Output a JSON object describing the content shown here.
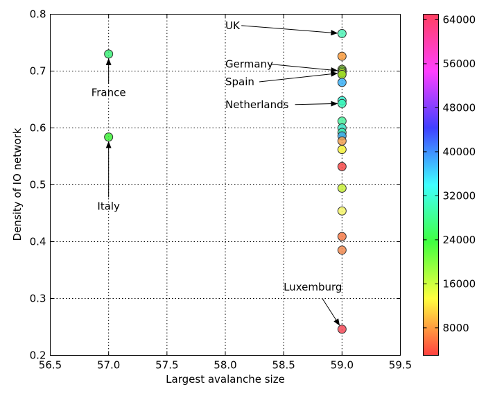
{
  "chart_data": {
    "type": "scatter",
    "title": "",
    "xlabel": "Largest avalanche size",
    "ylabel": "Density of IO network",
    "xlim": [
      56.5,
      59.5
    ],
    "ylim": [
      0.2,
      0.8
    ],
    "xticks": [
      56.5,
      57.0,
      57.5,
      58.0,
      58.5,
      59.0,
      59.5
    ],
    "xtick_labels": [
      "56.5",
      "57.0",
      "57.5",
      "58.0",
      "58.5",
      "59.0",
      "59.5"
    ],
    "yticks": [
      0.2,
      0.3,
      0.4,
      0.5,
      0.6,
      0.7,
      0.8
    ],
    "ytick_labels": [
      "0.2",
      "0.3",
      "0.4",
      "0.5",
      "0.6",
      "0.7",
      "0.8"
    ],
    "grid": true,
    "colorbar": {
      "colormap": "hsv",
      "range": [
        3000,
        65000
      ],
      "ticks": [
        8000,
        16000,
        24000,
        32000,
        40000,
        48000,
        56000,
        64000
      ],
      "tick_labels": [
        "8000",
        "16000",
        "24000",
        "32000",
        "40000",
        "48000",
        "56000",
        "64000"
      ]
    },
    "points": [
      {
        "x": 57.0,
        "y": 0.73,
        "color": "#3cf078"
      },
      {
        "x": 57.0,
        "y": 0.584,
        "color": "#3ff03a"
      },
      {
        "x": 59.0,
        "y": 0.766,
        "color": "#4ff2b6"
      },
      {
        "x": 59.0,
        "y": 0.726,
        "color": "#f89a3c"
      },
      {
        "x": 59.0,
        "y": 0.703,
        "color": "#86c43a"
      },
      {
        "x": 59.0,
        "y": 0.7,
        "color": "#6fcc2e"
      },
      {
        "x": 59.0,
        "y": 0.697,
        "color": "#b8e030"
      },
      {
        "x": 59.0,
        "y": 0.694,
        "color": "#9ad826"
      },
      {
        "x": 59.0,
        "y": 0.68,
        "color": "#3aaff5"
      },
      {
        "x": 59.0,
        "y": 0.648,
        "color": "#36f0d0"
      },
      {
        "x": 59.0,
        "y": 0.643,
        "color": "#3cf6b8"
      },
      {
        "x": 59.0,
        "y": 0.612,
        "color": "#4cf09e"
      },
      {
        "x": 59.0,
        "y": 0.6,
        "color": "#3ee6c8"
      },
      {
        "x": 59.0,
        "y": 0.592,
        "color": "#3fe6b0"
      },
      {
        "x": 59.0,
        "y": 0.586,
        "color": "#40a8e8"
      },
      {
        "x": 59.0,
        "y": 0.577,
        "color": "#f0a050"
      },
      {
        "x": 59.0,
        "y": 0.562,
        "color": "#f4f23a"
      },
      {
        "x": 59.0,
        "y": 0.532,
        "color": "#f44848"
      },
      {
        "x": 59.0,
        "y": 0.494,
        "color": "#c8f03a"
      },
      {
        "x": 59.0,
        "y": 0.454,
        "color": "#f4f46a"
      },
      {
        "x": 59.0,
        "y": 0.409,
        "color": "#f47a48"
      },
      {
        "x": 59.0,
        "y": 0.385,
        "color": "#f08a50"
      },
      {
        "x": 59.0,
        "y": 0.246,
        "color": "#f44a58"
      }
    ],
    "annotations": [
      {
        "text": "UK",
        "point": [
          59.0,
          0.766
        ],
        "text_pos": [
          58.0,
          0.774
        ],
        "anchor": "start"
      },
      {
        "text": "Germany",
        "point": [
          59.0,
          0.7
        ],
        "text_pos": [
          58.0,
          0.706
        ],
        "anchor": "start"
      },
      {
        "text": "Spain",
        "point": [
          59.0,
          0.697
        ],
        "text_pos": [
          58.0,
          0.675
        ],
        "anchor": "start"
      },
      {
        "text": "Netherlands",
        "point": [
          59.0,
          0.643
        ],
        "text_pos": [
          58.0,
          0.635
        ],
        "anchor": "start"
      },
      {
        "text": "France",
        "point": [
          57.0,
          0.73
        ],
        "text_pos": [
          57.0,
          0.656
        ],
        "anchor": "middle"
      },
      {
        "text": "Italy",
        "point": [
          57.0,
          0.584
        ],
        "text_pos": [
          57.0,
          0.456
        ],
        "anchor": "middle"
      },
      {
        "text": "Luxemburg",
        "point": [
          59.0,
          0.246
        ],
        "text_pos": [
          58.75,
          0.314
        ],
        "anchor": "middle"
      }
    ]
  }
}
